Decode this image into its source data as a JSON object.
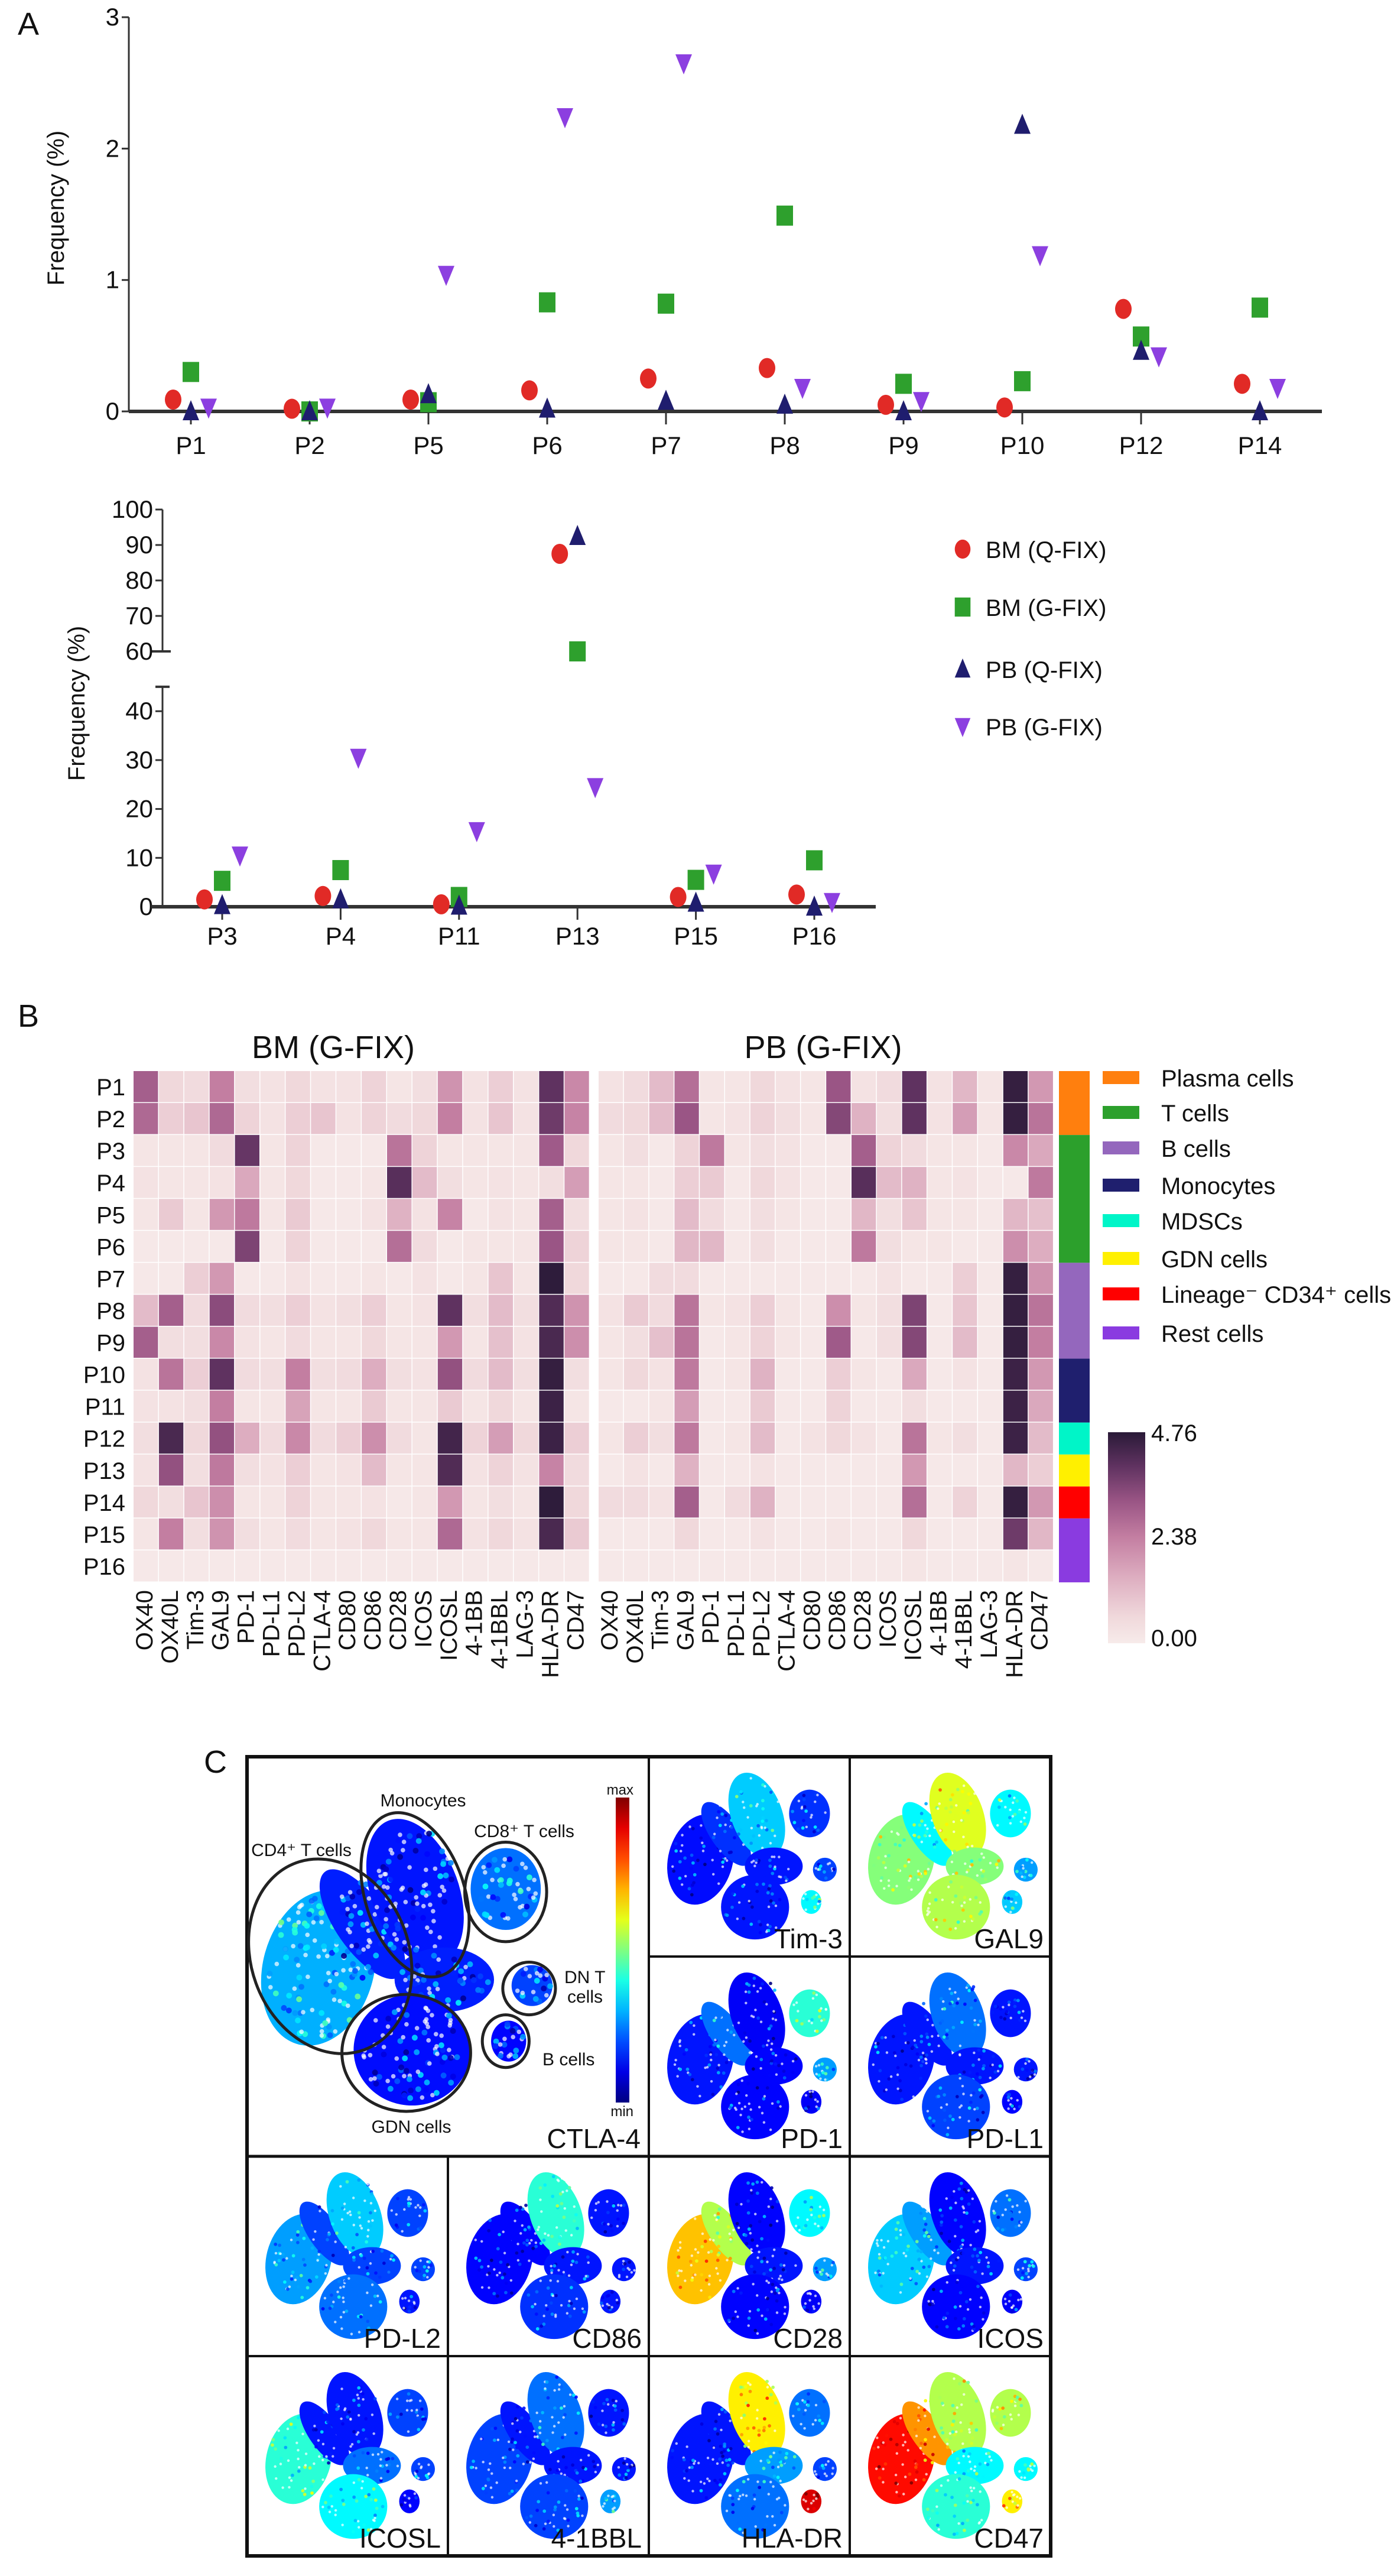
{
  "panel_labels": {
    "a": "A",
    "b": "B",
    "c": "C"
  },
  "chart_data": [
    {
      "type": "scatter",
      "panel": "A-top",
      "categories": [
        "P1",
        "P2",
        "P5",
        "P6",
        "P7",
        "P8",
        "P9",
        "P10",
        "P12",
        "P14"
      ],
      "ylabel": "Frequency (%)",
      "xlabel": "",
      "ylim": [
        0,
        3
      ],
      "yticks": [
        "0",
        "1",
        "2",
        "3"
      ],
      "grid": false,
      "series": [
        {
          "name": "BM (Q-FIX)",
          "marker": "circle",
          "color": "#e12a26",
          "values": [
            0.09,
            0.02,
            0.09,
            0.16,
            0.25,
            0.33,
            0.05,
            0.03,
            0.78,
            0.21
          ]
        },
        {
          "name": "BM (G-FIX)",
          "marker": "square",
          "color": "#2ea02d",
          "values": [
            0.3,
            0.0,
            0.07,
            0.83,
            0.82,
            1.49,
            0.21,
            0.23,
            0.57,
            0.79
          ]
        },
        {
          "name": "PB (Q-FIX)",
          "marker": "triangle-up",
          "color": "#1f1d6e",
          "values": [
            0.0,
            0.0,
            0.13,
            0.02,
            0.08,
            0.05,
            0.0,
            2.18,
            0.46,
            0.0
          ]
        },
        {
          "name": "PB (G-FIX)",
          "marker": "triangle-down",
          "color": "#8c3fe0",
          "values": [
            0.03,
            0.03,
            1.04,
            2.24,
            2.65,
            0.18,
            0.08,
            1.19,
            0.42,
            0.18
          ]
        }
      ]
    },
    {
      "type": "scatter",
      "panel": "A-bottom",
      "categories": [
        "P3",
        "P4",
        "P11",
        "P13",
        "P15",
        "P16"
      ],
      "ylabel": "Frequency (%)",
      "xlabel": "",
      "ylim": [
        0,
        100
      ],
      "axis_break": [
        45,
        60
      ],
      "yticks_lower": [
        "0",
        "10",
        "20",
        "30",
        "40"
      ],
      "yticks_upper": [
        "60",
        "70",
        "80",
        "90",
        "100"
      ],
      "legend_position": "right",
      "grid": false,
      "series": [
        {
          "name": "BM (Q-FIX)",
          "marker": "circle",
          "color": "#e12a26",
          "values": [
            1.5,
            2.2,
            0.5,
            87.5,
            2.0,
            2.5
          ]
        },
        {
          "name": "BM (G-FIX)",
          "marker": "square",
          "color": "#2ea02d",
          "values": [
            5.3,
            7.5,
            2.0,
            60.0,
            5.5,
            9.5
          ]
        },
        {
          "name": "PB (Q-FIX)",
          "marker": "triangle-up",
          "color": "#1f1d6e",
          "values": [
            0.3,
            1.5,
            0.2,
            92.5,
            0.8,
            0.0
          ]
        },
        {
          "name": "PB (G-FIX)",
          "marker": "triangle-down",
          "color": "#8c3fe0",
          "values": [
            10.5,
            30.5,
            15.5,
            24.5,
            6.8,
            1.0
          ]
        }
      ]
    },
    {
      "type": "heatmap",
      "panel": "B",
      "titles": [
        "BM (G-FIX)",
        "PB (G-FIX)"
      ],
      "rows": [
        "P1",
        "P2",
        "P3",
        "P4",
        "P5",
        "P6",
        "P7",
        "P8",
        "P9",
        "P10",
        "P11",
        "P12",
        "P13",
        "P14",
        "P15",
        "P16"
      ],
      "columns": [
        "OX40",
        "OX40L",
        "Tim-3",
        "GAL9",
        "PD-1",
        "PD-L1",
        "PD-L2",
        "CTLA-4",
        "CD80",
        "CD86",
        "CD28",
        "ICOS",
        "ICOSL",
        "4-1BB",
        "4-1BBL",
        "LAG-3",
        "HLA-DR",
        "CD47"
      ],
      "colorbar": {
        "min": 0,
        "max": 4.76,
        "labels": [
          "4.76",
          "2.38",
          "0.00"
        ],
        "low_color": "#f7ebea",
        "high_color": "#2a1a38"
      },
      "values_bm": [
        [
          3.0,
          0.6,
          0.5,
          2.4,
          0.4,
          0.3,
          0.6,
          0.3,
          0.3,
          0.7,
          0.2,
          0.4,
          2.0,
          0.3,
          0.8,
          0.3,
          4.0,
          2.2
        ],
        [
          2.8,
          0.8,
          1.0,
          2.8,
          0.7,
          0.3,
          0.8,
          1.0,
          0.3,
          0.7,
          0.5,
          0.6,
          2.4,
          0.3,
          1.0,
          0.3,
          3.8,
          2.3
        ],
        [
          0.2,
          0.2,
          0.2,
          0.5,
          3.9,
          0.2,
          0.7,
          0.1,
          0.1,
          0.1,
          2.6,
          0.7,
          0.2,
          0.2,
          0.2,
          0.2,
          3.1,
          0.6
        ],
        [
          0.3,
          0.2,
          0.2,
          0.3,
          1.6,
          0.2,
          0.6,
          0.1,
          0.1,
          0.2,
          4.1,
          1.2,
          0.4,
          0.2,
          0.3,
          0.2,
          0.4,
          1.8
        ],
        [
          0.2,
          0.9,
          0.2,
          1.9,
          2.5,
          0.2,
          0.9,
          0.1,
          0.1,
          0.3,
          1.4,
          0.3,
          2.3,
          0.1,
          0.3,
          0.2,
          3.0,
          0.4
        ],
        [
          0.1,
          0.1,
          0.1,
          0.1,
          3.6,
          0.1,
          0.7,
          0.1,
          0.1,
          0.1,
          2.7,
          0.5,
          0.1,
          0.2,
          0.2,
          0.2,
          3.2,
          0.7
        ],
        [
          0.1,
          0.1,
          0.8,
          1.9,
          0.1,
          0.1,
          0.3,
          0.1,
          0.1,
          0.2,
          0.1,
          0.3,
          0.1,
          0.2,
          1.0,
          0.2,
          4.7,
          0.6
        ],
        [
          1.2,
          3.0,
          0.5,
          3.4,
          0.5,
          0.4,
          0.8,
          0.3,
          0.4,
          0.8,
          0.2,
          0.3,
          4.0,
          0.4,
          1.2,
          0.4,
          4.2,
          2.0
        ],
        [
          3.0,
          0.4,
          0.4,
          2.2,
          0.3,
          0.2,
          0.5,
          0.2,
          0.2,
          0.6,
          0.2,
          0.2,
          1.9,
          0.2,
          1.1,
          0.3,
          4.3,
          2.1
        ],
        [
          0.3,
          2.6,
          0.8,
          4.0,
          0.5,
          0.4,
          2.4,
          0.4,
          0.5,
          1.5,
          0.4,
          0.3,
          3.3,
          0.5,
          1.2,
          0.4,
          4.6,
          0.4
        ],
        [
          0.3,
          0.3,
          0.4,
          2.4,
          0.2,
          0.2,
          1.7,
          0.2,
          0.2,
          0.9,
          0.2,
          0.2,
          0.9,
          0.2,
          0.6,
          0.2,
          4.5,
          0.2
        ],
        [
          0.4,
          4.3,
          0.6,
          3.3,
          1.5,
          0.5,
          2.2,
          0.5,
          0.8,
          2.1,
          0.5,
          0.2,
          4.4,
          0.7,
          1.8,
          0.6,
          4.5,
          0.8
        ],
        [
          0.3,
          3.3,
          0.4,
          2.5,
          0.4,
          0.3,
          0.8,
          0.2,
          0.3,
          1.2,
          0.2,
          0.2,
          4.2,
          0.3,
          0.7,
          0.3,
          2.3,
          0.5
        ],
        [
          0.6,
          0.4,
          1.0,
          2.1,
          0.2,
          0.2,
          0.7,
          0.2,
          0.2,
          0.3,
          0.1,
          0.2,
          1.9,
          0.2,
          0.4,
          0.2,
          4.7,
          0.6
        ],
        [
          0.2,
          2.4,
          0.4,
          2.0,
          0.4,
          0.2,
          0.5,
          0.2,
          0.3,
          0.6,
          0.2,
          0.2,
          2.8,
          0.3,
          0.6,
          0.3,
          4.3,
          0.9
        ],
        [
          0.1,
          0.1,
          0.1,
          0.1,
          0.1,
          0.1,
          0.1,
          0.1,
          0.1,
          0.1,
          0.1,
          0.1,
          0.1,
          0.1,
          0.1,
          0.1,
          0.1,
          0.1
        ]
      ],
      "values_pb": [
        [
          0.3,
          0.5,
          1.2,
          2.7,
          0.2,
          0.2,
          0.6,
          0.3,
          0.2,
          3.2,
          0.3,
          0.5,
          4.0,
          0.3,
          1.3,
          0.2,
          4.6,
          1.9
        ],
        [
          0.5,
          0.6,
          1.2,
          3.2,
          0.2,
          0.3,
          0.7,
          0.4,
          0.2,
          3.5,
          1.4,
          0.4,
          4.0,
          0.3,
          1.8,
          0.2,
          4.6,
          2.6
        ],
        [
          0.2,
          0.4,
          0.1,
          0.7,
          2.5,
          0.2,
          0.4,
          0.3,
          0.1,
          0.1,
          3.0,
          0.7,
          0.5,
          0.2,
          0.2,
          0.1,
          2.2,
          1.6
        ],
        [
          0.2,
          0.2,
          0.1,
          0.8,
          0.9,
          0.1,
          0.6,
          0.3,
          0.1,
          0.1,
          4.1,
          1.2,
          1.4,
          0.2,
          0.3,
          0.1,
          0.1,
          2.5
        ],
        [
          0.2,
          0.3,
          0.1,
          1.2,
          0.5,
          0.1,
          0.4,
          0.2,
          0.1,
          0.1,
          1.3,
          0.4,
          1.0,
          0.2,
          0.2,
          0.1,
          1.3,
          1.1
        ],
        [
          0.2,
          0.2,
          0.1,
          1.3,
          1.3,
          0.1,
          0.4,
          0.1,
          0.1,
          0.1,
          2.5,
          0.4,
          0.2,
          0.2,
          0.1,
          0.1,
          2.1,
          1.5
        ],
        [
          0.1,
          0.1,
          0.5,
          0.5,
          0.1,
          0.1,
          0.1,
          0.1,
          0.1,
          0.1,
          0.1,
          0.3,
          0.1,
          0.1,
          0.8,
          0.1,
          4.6,
          2.0
        ],
        [
          0.3,
          0.9,
          0.5,
          2.6,
          0.2,
          0.3,
          0.8,
          0.2,
          0.1,
          2.1,
          0.2,
          0.4,
          3.6,
          0.1,
          1.0,
          0.1,
          4.6,
          2.6
        ],
        [
          0.2,
          0.4,
          1.1,
          2.6,
          0.1,
          0.2,
          0.7,
          0.2,
          0.1,
          3.1,
          0.1,
          0.4,
          3.5,
          0.1,
          1.2,
          0.1,
          4.6,
          2.4
        ],
        [
          0.2,
          0.6,
          0.3,
          2.5,
          0.1,
          0.2,
          1.4,
          0.1,
          0.1,
          0.8,
          0.2,
          0.1,
          1.6,
          0.1,
          0.3,
          0.1,
          4.5,
          1.9
        ],
        [
          0.1,
          0.1,
          0.2,
          1.8,
          0.1,
          0.1,
          0.9,
          0.1,
          0.1,
          0.7,
          0.1,
          0.1,
          0.4,
          0.1,
          0.1,
          0.1,
          4.5,
          1.6
        ],
        [
          0.2,
          0.8,
          0.4,
          2.5,
          0.1,
          0.2,
          1.2,
          0.1,
          0.3,
          0.6,
          0.3,
          0.1,
          2.6,
          0.2,
          0.4,
          0.1,
          4.5,
          1.2
        ],
        [
          0.1,
          0.3,
          0.1,
          1.4,
          0.1,
          0.1,
          0.3,
          0.1,
          0.1,
          0.1,
          0.1,
          0.1,
          1.9,
          0.1,
          0.1,
          0.1,
          1.3,
          0.8
        ],
        [
          0.5,
          0.5,
          0.3,
          3.0,
          0.1,
          0.5,
          1.4,
          0.1,
          0.1,
          0.1,
          0.1,
          0.1,
          2.7,
          0.1,
          0.7,
          0.1,
          4.6,
          1.9
        ],
        [
          0.1,
          0.1,
          0.1,
          0.6,
          0.1,
          0.1,
          0.3,
          0.1,
          0.1,
          0.2,
          0.1,
          0.1,
          0.6,
          0.1,
          0.1,
          0.1,
          3.8,
          1.3
        ],
        [
          0.1,
          0.1,
          0.1,
          0.1,
          0.1,
          0.1,
          0.1,
          0.1,
          0.1,
          0.1,
          0.1,
          0.1,
          0.2,
          0.1,
          0.1,
          0.1,
          0.2,
          0.1
        ]
      ],
      "row_groups": [
        {
          "name": "Plasma cells",
          "color": "#ff7f0e",
          "rows": [
            "P1",
            "P2"
          ]
        },
        {
          "name": "T cells",
          "color": "#2ca02c",
          "rows": [
            "P3",
            "P4",
            "P5",
            "P6"
          ]
        },
        {
          "name": "B cells",
          "color": "#9467bd",
          "rows": [
            "P7",
            "P8",
            "P9"
          ]
        },
        {
          "name": "Monocytes",
          "color": "#1f1f6e",
          "rows": [
            "P10",
            "P11"
          ]
        },
        {
          "name": "MDSCs",
          "color": "#00f5c8",
          "rows": [
            "P12"
          ]
        },
        {
          "name": "GDN cells",
          "color": "#fff000",
          "rows": [
            "P13"
          ]
        },
        {
          "name": "Lineage⁻ CD34⁺ cells",
          "color": "#ff0000",
          "rows": [
            "P14"
          ]
        },
        {
          "name": "Rest cells",
          "color": "#8a3be0",
          "rows": [
            "P15",
            "P16"
          ]
        }
      ]
    },
    {
      "type": "scatter",
      "panel": "C",
      "subtype": "tSNE expression maps",
      "overview_marker": "CTLA-4",
      "cluster_labels": [
        "Monocytes",
        "CD4⁺ T cells",
        "CD8⁺ T cells",
        "DN T",
        "cells",
        "B cells",
        "GDN cells"
      ],
      "colorbar_labels": {
        "max": "max",
        "min": "min"
      },
      "markers": [
        "Tim-3",
        "GAL9",
        "PD-1",
        "PD-L1",
        "PD-L2",
        "CD86",
        "CD28",
        "ICOS",
        "ICOSL",
        "4-1BBL",
        "HLA-DR",
        "CD47"
      ]
    }
  ]
}
